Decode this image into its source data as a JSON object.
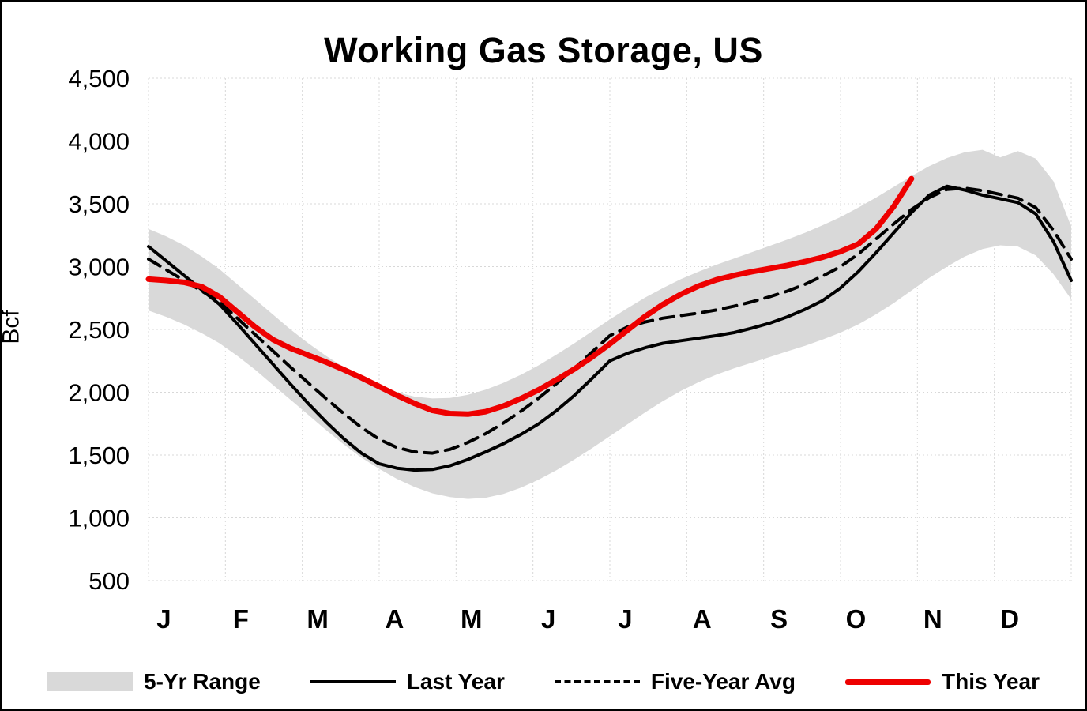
{
  "chart_data": {
    "type": "line",
    "title": "Working Gas Storage, US",
    "ylabel": "Bcf",
    "ylim": [
      500,
      4500
    ],
    "ytick_step": 500,
    "ytick_labels": [
      "500",
      "1,000",
      "1,500",
      "2,000",
      "2,500",
      "3,000",
      "3,500",
      "4,000",
      "4,500"
    ],
    "x_months": [
      "J",
      "F",
      "M",
      "A",
      "M",
      "J",
      "J",
      "A",
      "S",
      "O",
      "N",
      "D"
    ],
    "x_note": "weekly values, January through December",
    "grid": true,
    "legend_position": "bottom",
    "band": {
      "name": "5-Yr Range",
      "color": "#d9d9d9",
      "upper": [
        3300,
        3240,
        3170,
        3080,
        2980,
        2860,
        2740,
        2620,
        2500,
        2390,
        2290,
        2200,
        2120,
        2050,
        2000,
        1965,
        1950,
        1955,
        1980,
        2020,
        2075,
        2140,
        2215,
        2300,
        2390,
        2485,
        2580,
        2670,
        2755,
        2830,
        2900,
        2960,
        3015,
        3065,
        3115,
        3165,
        3215,
        3270,
        3330,
        3395,
        3470,
        3550,
        3635,
        3720,
        3800,
        3865,
        3910,
        3930,
        3870,
        3920,
        3860,
        3680,
        3320
      ],
      "lower": [
        2650,
        2600,
        2540,
        2470,
        2390,
        2290,
        2180,
        2060,
        1940,
        1820,
        1700,
        1585,
        1480,
        1390,
        1310,
        1245,
        1195,
        1165,
        1150,
        1160,
        1190,
        1240,
        1305,
        1380,
        1465,
        1555,
        1650,
        1745,
        1840,
        1930,
        2010,
        2080,
        2140,
        2190,
        2235,
        2280,
        2325,
        2370,
        2420,
        2475,
        2540,
        2620,
        2710,
        2810,
        2910,
        3000,
        3080,
        3140,
        3170,
        3160,
        3090,
        2940,
        2740
      ]
    },
    "series": [
      {
        "name": "Last Year",
        "style": "solid",
        "color": "#000000",
        "width": 4,
        "values": [
          3160,
          3045,
          2930,
          2815,
          2700,
          2545,
          2385,
          2225,
          2065,
          1910,
          1765,
          1630,
          1515,
          1430,
          1395,
          1380,
          1385,
          1415,
          1465,
          1525,
          1590,
          1665,
          1750,
          1855,
          1975,
          2110,
          2250,
          2310,
          2355,
          2390,
          2410,
          2430,
          2450,
          2475,
          2510,
          2550,
          2600,
          2660,
          2730,
          2830,
          2960,
          3110,
          3270,
          3430,
          3570,
          3640,
          3610,
          3570,
          3540,
          3510,
          3420,
          3200,
          2890
        ]
      },
      {
        "name": "Five-Year Avg",
        "style": "dashed",
        "dash": "17 10",
        "color": "#000000",
        "width": 4,
        "values": [
          3060,
          2975,
          2890,
          2805,
          2720,
          2590,
          2460,
          2330,
          2200,
          2075,
          1950,
          1830,
          1720,
          1625,
          1560,
          1525,
          1515,
          1545,
          1600,
          1670,
          1755,
          1850,
          1955,
          2070,
          2190,
          2320,
          2450,
          2520,
          2560,
          2590,
          2610,
          2630,
          2655,
          2685,
          2720,
          2760,
          2805,
          2860,
          2925,
          3000,
          3100,
          3220,
          3340,
          3455,
          3550,
          3615,
          3625,
          3605,
          3575,
          3545,
          3470,
          3290,
          3060
        ]
      },
      {
        "name": "This Year",
        "style": "solid",
        "color": "#ee0000",
        "width": 7,
        "values": [
          2900,
          2890,
          2875,
          2840,
          2760,
          2640,
          2520,
          2420,
          2350,
          2295,
          2240,
          2180,
          2115,
          2045,
          1975,
          1910,
          1855,
          1830,
          1825,
          1845,
          1890,
          1950,
          2020,
          2100,
          2185,
          2280,
          2385,
          2495,
          2605,
          2700,
          2780,
          2845,
          2895,
          2930,
          2960,
          2985,
          3010,
          3040,
          3075,
          3120,
          3180,
          3300,
          3480,
          3700
        ]
      }
    ]
  }
}
